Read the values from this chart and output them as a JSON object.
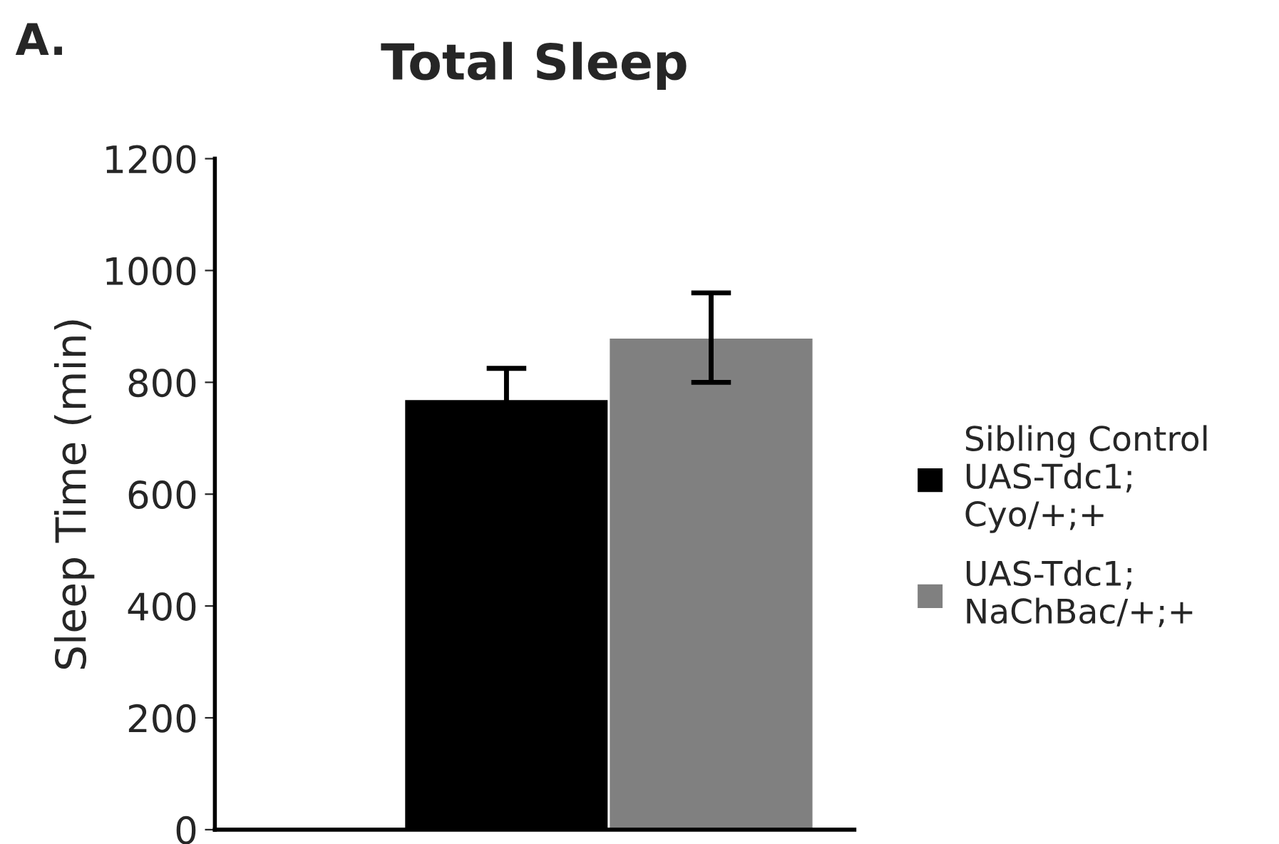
{
  "chart_data": {
    "type": "bar",
    "title": "Total Sleep",
    "ylabel": "Sleep Time (min)",
    "annotations": [
      "A."
    ],
    "categories": [
      null
    ],
    "series": [
      {
        "name": "Sibling Control\nUAS-Tdc1;\nCyo/+;+",
        "color": "#000000",
        "values": [
          770
        ],
        "errors": [
          55
        ]
      },
      {
        "name": "UAS-Tdc1;\nNaChBac/+;+",
        "color": "#808080",
        "values": [
          880
        ],
        "errors": [
          80
        ]
      }
    ],
    "ylim": [
      0,
      1200
    ],
    "yticks": [
      0,
      200,
      400,
      600,
      800,
      1000,
      1200
    ],
    "grid": false,
    "legend": "right"
  }
}
